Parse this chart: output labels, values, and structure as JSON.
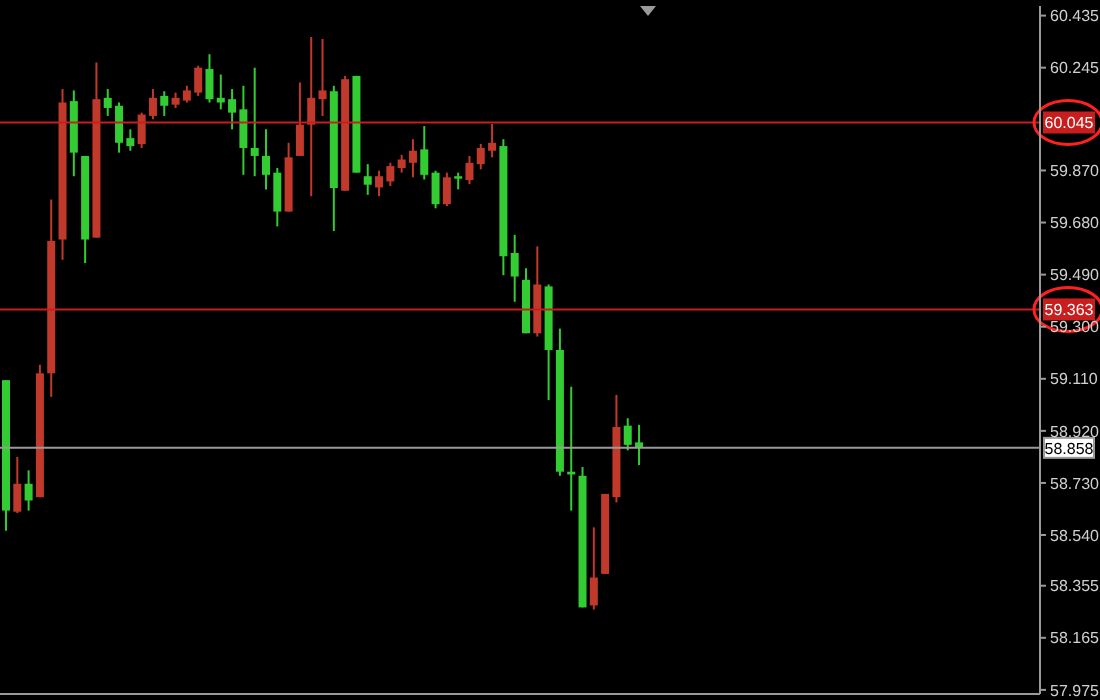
{
  "chart_data": {
    "type": "candlestick",
    "categories": [
      null,
      null,
      null,
      null,
      null,
      null,
      null,
      null,
      null,
      null,
      null,
      null,
      null,
      null,
      null,
      null,
      null,
      null,
      null,
      null,
      null,
      null,
      null,
      null,
      null,
      null,
      null,
      null,
      null,
      null,
      null,
      null,
      null,
      null,
      null,
      null,
      null,
      null,
      null,
      null,
      null,
      null,
      null,
      null,
      null,
      null,
      null,
      null,
      null,
      null,
      null,
      null,
      null,
      null,
      null,
      null,
      null,
      null,
      null,
      null,
      null,
      null,
      null,
      null,
      null,
      null,
      null,
      null,
      null,
      null,
      null,
      null,
      null,
      null,
      null,
      null,
      null,
      null,
      null,
      null,
      null,
      null,
      null,
      null,
      null,
      null,
      null,
      null,
      null,
      null,
      null,
      null
    ],
    "ohlc": [
      [
        59.105,
        59.105,
        58.556,
        58.629
      ],
      [
        58.625,
        58.825,
        58.62,
        58.727
      ],
      [
        58.727,
        58.776,
        58.629,
        58.666
      ],
      [
        58.678,
        59.161,
        58.678,
        59.13
      ],
      [
        59.13,
        59.764,
        59.044,
        59.613
      ],
      [
        59.618,
        60.167,
        59.544,
        60.118
      ],
      [
        60.123,
        60.162,
        59.849,
        59.935
      ],
      [
        59.923,
        59.923,
        59.532,
        59.618
      ],
      [
        59.625,
        60.264,
        59.625,
        60.13
      ],
      [
        60.135,
        60.167,
        60.069,
        60.098
      ],
      [
        60.106,
        60.118,
        59.935,
        59.971
      ],
      [
        59.988,
        60.02,
        59.942,
        59.959
      ],
      [
        59.966,
        60.081,
        59.952,
        60.074
      ],
      [
        60.069,
        60.167,
        60.057,
        60.135
      ],
      [
        60.142,
        60.159,
        60.069,
        60.106
      ],
      [
        60.11,
        60.154,
        60.098,
        60.135
      ],
      [
        60.125,
        60.179,
        60.118,
        60.162
      ],
      [
        60.154,
        60.252,
        60.142,
        60.245
      ],
      [
        60.24,
        60.294,
        60.118,
        60.13
      ],
      [
        60.135,
        60.22,
        60.093,
        60.118
      ],
      [
        60.13,
        60.167,
        60.02,
        60.081
      ],
      [
        60.093,
        60.179,
        59.854,
        59.952
      ],
      [
        59.952,
        60.245,
        59.849,
        59.923
      ],
      [
        59.923,
        60.02,
        59.801,
        59.854
      ],
      [
        59.862,
        59.879,
        59.666,
        59.72
      ],
      [
        59.72,
        59.971,
        59.72,
        59.918
      ],
      [
        59.923,
        60.191,
        59.923,
        60.037
      ],
      [
        60.037,
        60.357,
        59.776,
        60.135
      ],
      [
        60.13,
        60.35,
        60.069,
        60.162
      ],
      [
        60.159,
        60.179,
        59.649,
        59.806
      ],
      [
        59.796,
        60.215,
        59.796,
        60.203
      ],
      [
        60.215,
        60.215,
        59.862,
        59.862
      ],
      [
        59.849,
        59.893,
        59.781,
        59.818
      ],
      [
        59.808,
        59.869,
        59.776,
        59.849
      ],
      [
        59.83,
        59.898,
        59.813,
        59.886
      ],
      [
        59.879,
        59.927,
        59.862,
        59.91
      ],
      [
        59.898,
        59.984,
        59.845,
        59.942
      ],
      [
        59.947,
        60.032,
        59.837,
        59.854
      ],
      [
        59.862,
        59.869,
        59.732,
        59.747
      ],
      [
        59.747,
        59.862,
        59.74,
        59.845
      ],
      [
        59.849,
        59.862,
        59.801,
        59.84
      ],
      [
        59.835,
        59.923,
        59.82,
        59.898
      ],
      [
        59.893,
        59.967,
        59.874,
        59.952
      ],
      [
        59.942,
        60.04,
        59.918,
        59.971
      ],
      [
        59.959,
        59.984,
        59.488,
        59.557
      ],
      [
        59.569,
        59.635,
        59.391,
        59.483
      ],
      [
        59.471,
        59.513,
        59.276,
        59.276
      ],
      [
        59.276,
        59.593,
        59.264,
        59.454
      ],
      [
        59.447,
        59.454,
        59.032,
        59.215
      ],
      [
        59.215,
        59.293,
        58.756,
        58.771
      ],
      [
        58.771,
        59.081,
        58.629,
        58.761
      ],
      [
        58.756,
        58.788,
        58.276,
        58.276
      ],
      [
        58.283,
        58.568,
        58.268,
        58.385
      ],
      [
        58.398,
        58.69,
        58.398,
        58.69
      ],
      [
        58.678,
        59.051,
        58.659,
        58.934
      ],
      [
        58.939,
        58.966,
        58.849,
        58.869
      ],
      [
        58.878,
        58.942,
        58.795,
        58.858
      ],
      null,
      null,
      null,
      null,
      null,
      null,
      null,
      null,
      null,
      null,
      null,
      null,
      null,
      null,
      null,
      null,
      null,
      null,
      null,
      null,
      null,
      null,
      null,
      null,
      null,
      null,
      null,
      null,
      null,
      null,
      null,
      null,
      null,
      null,
      null
    ],
    "colors": [
      "#33cc33",
      "#c0392b",
      "#33cc33",
      "#c0392b",
      "#c0392b",
      "#c0392b",
      "#33cc33",
      "#33cc33",
      "#c0392b",
      "#33cc33",
      "#33cc33",
      "#33cc33",
      "#c0392b",
      "#c0392b",
      "#33cc33",
      "#c0392b",
      "#c0392b",
      "#c0392b",
      "#33cc33",
      "#33cc33",
      "#33cc33",
      "#33cc33",
      "#33cc33",
      "#33cc33",
      "#33cc33",
      "#c0392b",
      "#c0392b",
      "#c0392b",
      "#c0392b",
      "#33cc33",
      "#c0392b",
      "#33cc33",
      "#33cc33",
      "#c0392b",
      "#c0392b",
      "#c0392b",
      "#c0392b",
      "#33cc33",
      "#33cc33",
      "#c0392b",
      "#33cc33",
      "#c0392b",
      "#c0392b",
      "#c0392b",
      "#33cc33",
      "#33cc33",
      "#33cc33",
      "#c0392b",
      "#33cc33",
      "#33cc33",
      "#33cc33",
      "#33cc33",
      "#c0392b",
      "#c0392b",
      "#c0392b",
      "#33cc33",
      "#33cc33",
      null,
      null,
      null,
      null,
      null,
      null,
      null,
      null,
      null,
      null,
      null,
      null,
      null,
      null,
      null,
      null,
      null,
      null,
      null,
      null,
      null,
      null,
      null,
      null,
      null,
      null,
      null,
      null,
      null,
      null,
      null,
      null,
      null,
      null,
      null
    ],
    "ylim": [
      57.96,
      60.47
    ],
    "yticks": [
      60.435,
      60.245,
      {
        "value": 59.87,
        "label": "59.870"
      },
      {
        "value": 59.68,
        "label": "59.680"
      },
      {
        "value": 59.49,
        "label": "59.490"
      },
      {
        "value": 59.3,
        "label": "59.300"
      },
      {
        "value": 59.11,
        "label": "59.110"
      },
      {
        "value": 58.92,
        "label": "58.920"
      },
      {
        "value": 58.73,
        "label": "58.730"
      },
      {
        "value": 58.54,
        "label": "58.540"
      },
      58.355,
      58.165,
      57.975
    ],
    "tick_labels": "y",
    "ref_lines": [
      {
        "axis": "y",
        "value": 60.045,
        "label": "60.045",
        "color": "#c81e1e"
      },
      {
        "axis": "y",
        "value": 59.363,
        "label": "59.363",
        "color": "#c81e1e"
      },
      {
        "axis": "y",
        "value": 58.858,
        "label": "58.858",
        "color": "#9a9a9a"
      }
    ]
  }
}
